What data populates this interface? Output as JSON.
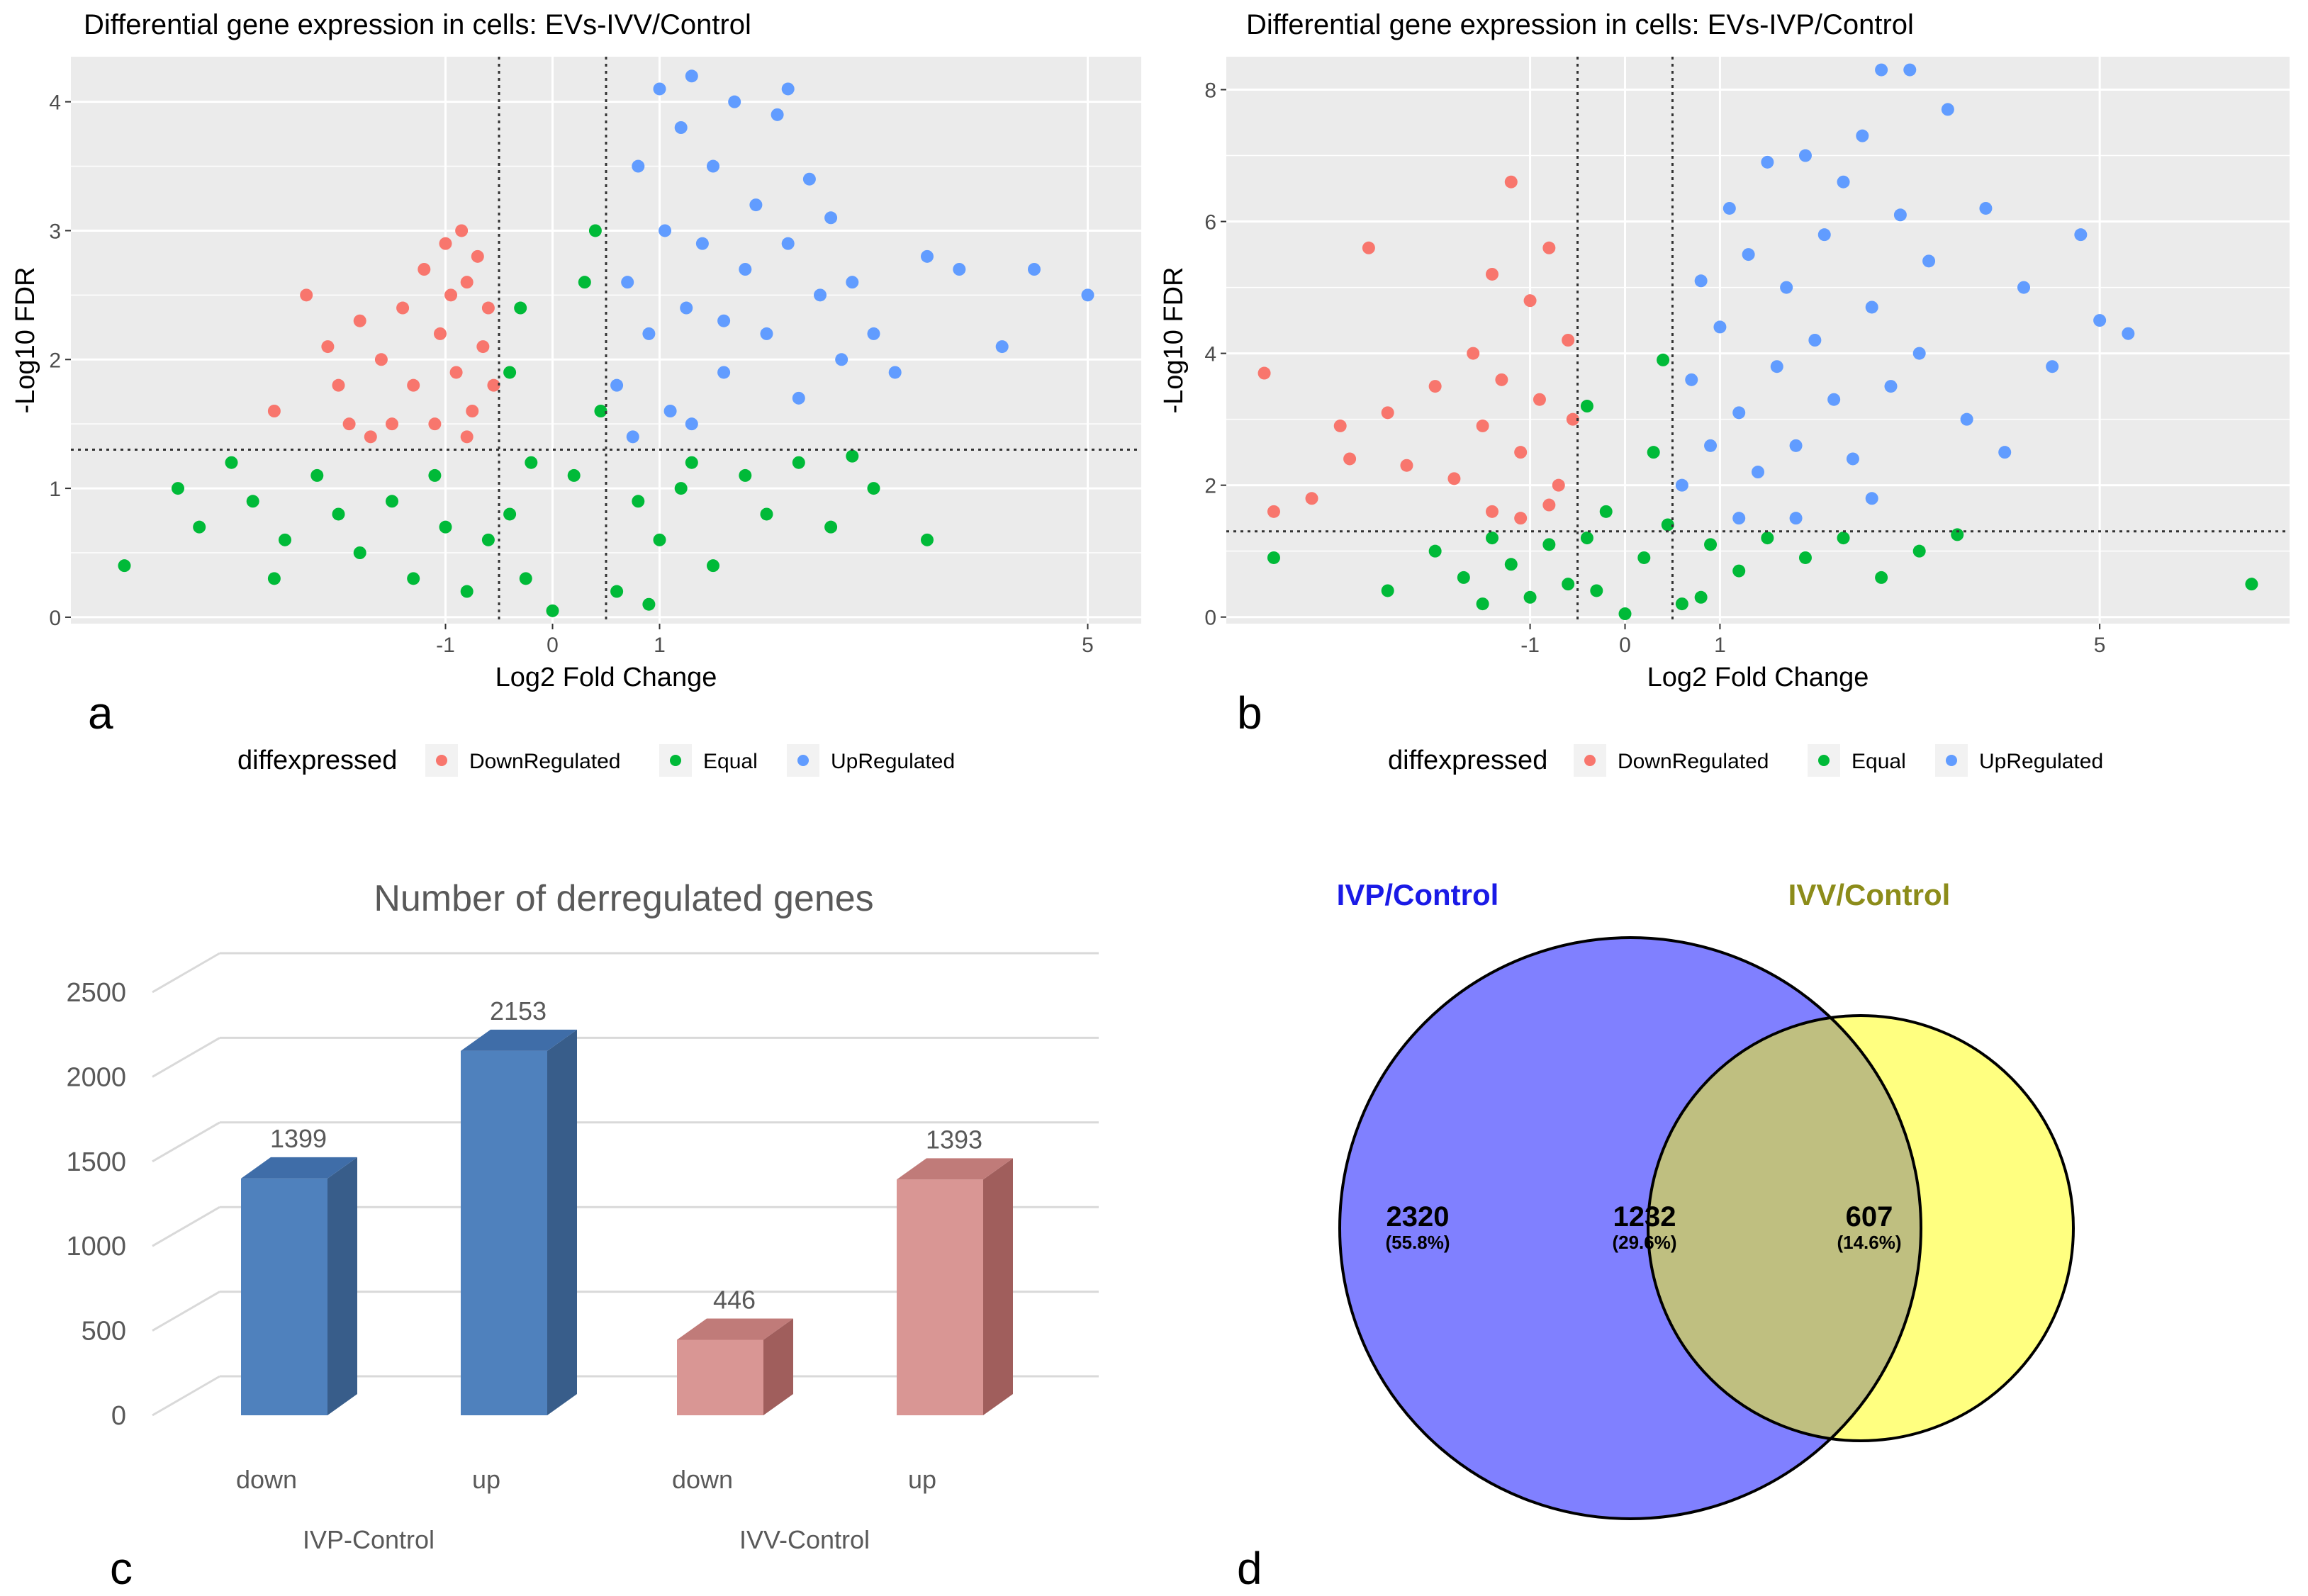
{
  "panel_labels": {
    "a": "a",
    "b": "b",
    "c": "c",
    "d": "d"
  },
  "colors": {
    "panel_bg": "#EBEBEB",
    "grid": "#FFFFFF",
    "down": "#F8766D",
    "equal": "#00BA38",
    "up": "#619CFF",
    "ivp_bar": "#4F81BD",
    "ivv_bar": "#D99694",
    "venn_left": "#8080FF",
    "venn_right": "#FFFF80",
    "venn_overlap": "#BFBF80",
    "venn_left_title": "#1A1AE6",
    "venn_right_title": "#8C8C1A"
  },
  "legend": {
    "title": "diffexpressed",
    "items": [
      {
        "label": "DownRegulated",
        "color": "#F8766D"
      },
      {
        "label": "Equal",
        "color": "#00BA38"
      },
      {
        "label": "UpRegulated",
        "color": "#619CFF"
      }
    ]
  },
  "chart_data": [
    {
      "id": "a",
      "type": "scatter",
      "title": "Differential gene expression in cells: EVs-IVV/Control",
      "xlabel": "Log2 Fold Change",
      "ylabel": "-Log10 FDR",
      "xlim": [
        -4.5,
        5.5
      ],
      "ylim": [
        -0.05,
        4.35
      ],
      "xticks": [
        -1,
        0,
        1,
        5
      ],
      "yticks": [
        0,
        1,
        2,
        3,
        4
      ],
      "fc_threshold": 0.5,
      "fdr_threshold": 1.3,
      "series": [
        {
          "name": "DownRegulated",
          "points": [
            [
              -2.6,
              1.6
            ],
            [
              -2.3,
              2.5
            ],
            [
              -2.1,
              2.1
            ],
            [
              -2.0,
              1.8
            ],
            [
              -1.8,
              2.3
            ],
            [
              -1.6,
              2.0
            ],
            [
              -1.5,
              1.5
            ],
            [
              -1.4,
              2.4
            ],
            [
              -1.3,
              1.8
            ],
            [
              -1.2,
              2.7
            ],
            [
              -1.1,
              1.5
            ],
            [
              -1.05,
              2.2
            ],
            [
              -1.0,
              2.9
            ],
            [
              -0.95,
              2.5
            ],
            [
              -0.9,
              1.9
            ],
            [
              -0.85,
              3.0
            ],
            [
              -0.8,
              2.6
            ],
            [
              -0.75,
              1.6
            ],
            [
              -0.7,
              2.8
            ],
            [
              -0.65,
              2.1
            ],
            [
              -0.6,
              2.4
            ],
            [
              -0.55,
              1.8
            ],
            [
              -1.7,
              1.4
            ],
            [
              -1.9,
              1.5
            ],
            [
              -0.8,
              1.4
            ]
          ]
        },
        {
          "name": "Equal",
          "points": [
            [
              -4.0,
              0.4
            ],
            [
              -3.3,
              0.7
            ],
            [
              -3.0,
              1.2
            ],
            [
              -2.8,
              0.9
            ],
            [
              -2.5,
              0.6
            ],
            [
              -2.2,
              1.1
            ],
            [
              -2.0,
              0.8
            ],
            [
              -1.8,
              0.5
            ],
            [
              -1.5,
              0.9
            ],
            [
              -1.3,
              0.3
            ],
            [
              -1.1,
              1.1
            ],
            [
              -1.0,
              0.7
            ],
            [
              -0.8,
              0.2
            ],
            [
              -0.6,
              0.6
            ],
            [
              -0.4,
              1.9
            ],
            [
              -0.4,
              0.8
            ],
            [
              -0.3,
              2.4
            ],
            [
              -0.25,
              0.3
            ],
            [
              -0.2,
              1.2
            ],
            [
              0,
              0.05
            ],
            [
              0.2,
              1.1
            ],
            [
              0.3,
              2.6
            ],
            [
              0.4,
              3.0
            ],
            [
              0.45,
              1.6
            ],
            [
              0.6,
              0.2
            ],
            [
              0.8,
              0.9
            ],
            [
              1.0,
              0.6
            ],
            [
              1.2,
              1.0
            ],
            [
              1.5,
              0.4
            ],
            [
              1.8,
              1.1
            ],
            [
              2.0,
              0.8
            ],
            [
              2.3,
              1.2
            ],
            [
              2.6,
              0.7
            ],
            [
              3.0,
              1.0
            ],
            [
              3.5,
              0.6
            ],
            [
              -3.5,
              1.0
            ],
            [
              -2.6,
              0.3
            ],
            [
              0.9,
              0.1
            ],
            [
              1.3,
              1.2
            ],
            [
              2.8,
              1.25
            ]
          ]
        },
        {
          "name": "UpRegulated",
          "points": [
            [
              0.6,
              1.8
            ],
            [
              0.7,
              2.6
            ],
            [
              0.8,
              3.5
            ],
            [
              0.9,
              2.2
            ],
            [
              1.0,
              4.1
            ],
            [
              1.05,
              3.0
            ],
            [
              1.1,
              1.6
            ],
            [
              1.2,
              3.8
            ],
            [
              1.25,
              2.4
            ],
            [
              1.3,
              4.2
            ],
            [
              1.4,
              2.9
            ],
            [
              1.5,
              3.5
            ],
            [
              1.6,
              1.9
            ],
            [
              1.7,
              4.0
            ],
            [
              1.8,
              2.7
            ],
            [
              1.9,
              3.2
            ],
            [
              2.0,
              2.2
            ],
            [
              2.1,
              3.9
            ],
            [
              2.2,
              2.9
            ],
            [
              2.3,
              1.7
            ],
            [
              2.4,
              3.4
            ],
            [
              2.5,
              2.5
            ],
            [
              2.6,
              3.1
            ],
            [
              2.7,
              2.0
            ],
            [
              2.8,
              2.6
            ],
            [
              3.0,
              2.2
            ],
            [
              3.2,
              1.9
            ],
            [
              3.5,
              2.8
            ],
            [
              3.8,
              2.7
            ],
            [
              4.2,
              2.1
            ],
            [
              4.5,
              2.7
            ],
            [
              5.0,
              2.5
            ],
            [
              1.3,
              1.5
            ],
            [
              1.6,
              2.3
            ],
            [
              2.2,
              4.1
            ],
            [
              0.75,
              1.4
            ]
          ]
        }
      ]
    },
    {
      "id": "b",
      "type": "scatter",
      "title": "Differential gene expression in cells: EVs-IVP/Control",
      "xlabel": "Log2 Fold Change",
      "ylabel": "-Log10 FDR",
      "xlim": [
        -4.2,
        7.0
      ],
      "ylim": [
        -0.1,
        8.5
      ],
      "xticks": [
        -1,
        0,
        1,
        5
      ],
      "yticks": [
        0,
        2,
        4,
        6,
        8
      ],
      "fc_threshold": 0.5,
      "fdr_threshold": 1.3,
      "series": [
        {
          "name": "DownRegulated",
          "points": [
            [
              -3.8,
              3.7
            ],
            [
              -3.7,
              1.6
            ],
            [
              -3.3,
              1.8
            ],
            [
              -3.0,
              2.9
            ],
            [
              -2.9,
              2.4
            ],
            [
              -2.7,
              5.6
            ],
            [
              -2.5,
              3.1
            ],
            [
              -2.3,
              2.3
            ],
            [
              -2.0,
              3.5
            ],
            [
              -1.8,
              2.1
            ],
            [
              -1.6,
              4.0
            ],
            [
              -1.5,
              2.9
            ],
            [
              -1.4,
              5.2
            ],
            [
              -1.3,
              3.6
            ],
            [
              -1.2,
              6.6
            ],
            [
              -1.1,
              2.5
            ],
            [
              -1.0,
              4.8
            ],
            [
              -0.9,
              3.3
            ],
            [
              -0.8,
              5.6
            ],
            [
              -0.7,
              2.0
            ],
            [
              -0.6,
              4.2
            ],
            [
              -0.55,
              3.0
            ],
            [
              -1.4,
              1.6
            ],
            [
              -1.1,
              1.5
            ],
            [
              -0.8,
              1.7
            ]
          ]
        },
        {
          "name": "Equal",
          "points": [
            [
              -3.7,
              0.9
            ],
            [
              -2.5,
              0.4
            ],
            [
              -2.0,
              1.0
            ],
            [
              -1.7,
              0.6
            ],
            [
              -1.4,
              1.2
            ],
            [
              -1.2,
              0.8
            ],
            [
              -1.0,
              0.3
            ],
            [
              -0.8,
              1.1
            ],
            [
              -0.6,
              0.5
            ],
            [
              -0.4,
              3.2
            ],
            [
              -0.4,
              1.2
            ],
            [
              -0.3,
              0.4
            ],
            [
              -0.2,
              1.6
            ],
            [
              0,
              0.05
            ],
            [
              0.2,
              0.9
            ],
            [
              0.3,
              2.5
            ],
            [
              0.4,
              3.9
            ],
            [
              0.45,
              1.4
            ],
            [
              0.6,
              0.2
            ],
            [
              0.9,
              1.1
            ],
            [
              1.2,
              0.7
            ],
            [
              1.5,
              1.2
            ],
            [
              1.9,
              0.9
            ],
            [
              2.3,
              1.2
            ],
            [
              2.7,
              0.6
            ],
            [
              3.1,
              1.0
            ],
            [
              3.5,
              1.25
            ],
            [
              6.6,
              0.5
            ],
            [
              -1.5,
              0.2
            ],
            [
              0.8,
              0.3
            ]
          ]
        },
        {
          "name": "UpRegulated",
          "points": [
            [
              0.6,
              2.0
            ],
            [
              0.7,
              3.6
            ],
            [
              0.8,
              5.1
            ],
            [
              0.9,
              2.6
            ],
            [
              1.0,
              4.4
            ],
            [
              1.1,
              6.2
            ],
            [
              1.2,
              3.1
            ],
            [
              1.3,
              5.5
            ],
            [
              1.4,
              2.2
            ],
            [
              1.5,
              6.9
            ],
            [
              1.6,
              3.8
            ],
            [
              1.7,
              5.0
            ],
            [
              1.8,
              2.6
            ],
            [
              1.9,
              7.0
            ],
            [
              2.0,
              4.2
            ],
            [
              2.1,
              5.8
            ],
            [
              2.2,
              3.3
            ],
            [
              2.3,
              6.6
            ],
            [
              2.4,
              2.4
            ],
            [
              2.5,
              7.3
            ],
            [
              2.6,
              4.7
            ],
            [
              2.7,
              8.3
            ],
            [
              2.8,
              3.5
            ],
            [
              2.9,
              6.1
            ],
            [
              3.0,
              8.3
            ],
            [
              3.1,
              4.0
            ],
            [
              3.2,
              5.4
            ],
            [
              3.4,
              7.7
            ],
            [
              3.6,
              3.0
            ],
            [
              3.8,
              6.2
            ],
            [
              4.0,
              2.5
            ],
            [
              4.2,
              5.0
            ],
            [
              4.5,
              3.8
            ],
            [
              4.8,
              5.8
            ],
            [
              5.0,
              4.5
            ],
            [
              5.3,
              4.3
            ],
            [
              1.2,
              1.5
            ],
            [
              1.8,
              1.5
            ],
            [
              2.6,
              1.8
            ]
          ]
        }
      ]
    },
    {
      "id": "c",
      "type": "bar",
      "title": "Number of derregulated genes",
      "ylim": [
        0,
        2500
      ],
      "yticks": [
        0,
        500,
        1000,
        1500,
        2000,
        2500
      ],
      "groups": [
        "IVP-Control",
        "IVV-Control"
      ],
      "categories": [
        "down",
        "up",
        "down",
        "up"
      ],
      "bar_group": [
        0,
        0,
        1,
        1
      ],
      "values": [
        1399,
        2153,
        446,
        1393
      ],
      "data_labels": [
        "1399",
        "2153",
        "446",
        "1393"
      ]
    },
    {
      "id": "d",
      "type": "venn",
      "sets": [
        {
          "name": "IVP/Control",
          "only": "2320",
          "only_pct": "(55.8%)"
        },
        {
          "name": "IVV/Control",
          "only": "607",
          "only_pct": "(14.6%)"
        }
      ],
      "intersection": {
        "value": "1232",
        "pct": "(29.6%)"
      }
    }
  ]
}
